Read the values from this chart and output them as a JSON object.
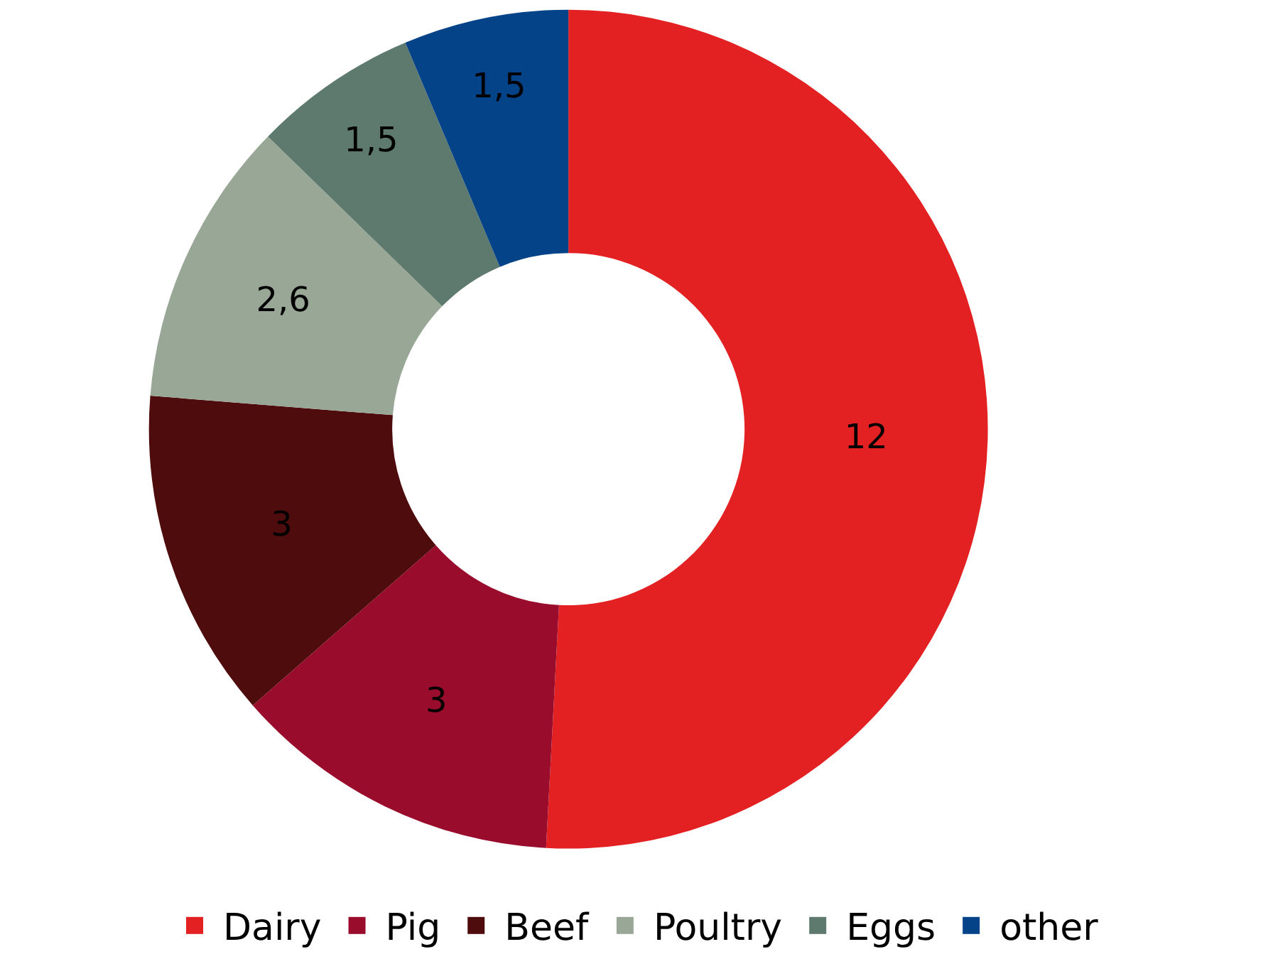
{
  "chart_data": {
    "type": "donut",
    "categories": [
      "Dairy",
      "Pig",
      "Beef",
      "Poultry",
      "Eggs",
      "other"
    ],
    "values": [
      12,
      3,
      3,
      2.6,
      1.5,
      1.5
    ],
    "value_labels": [
      "12",
      "3",
      "3",
      "2,6",
      "1,5",
      "1,5"
    ],
    "colors": [
      "#e32122",
      "#9a0c2c",
      "#4f0c0c",
      "#99a896",
      "#5e7a6f",
      "#044388"
    ],
    "legend": "bottom"
  }
}
